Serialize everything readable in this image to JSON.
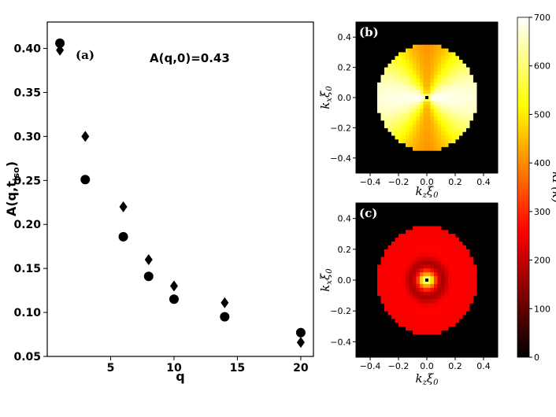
{
  "chart_data": [
    {
      "type": "scatter",
      "panel_label": "(a)",
      "annotation": "A(q,0)=0.43",
      "xlabel": "q",
      "ylabel_main": "A(q,t",
      "ylabel_sub": "iso",
      "ylabel_close": ")",
      "xlim": [
        0,
        21
      ],
      "ylim": [
        0.05,
        0.43
      ],
      "xticks": [
        "5",
        "10",
        "15",
        "20"
      ],
      "xtick_values": [
        5,
        10,
        15,
        20
      ],
      "yticks": [
        "0.05",
        "0.10",
        "0.15",
        "0.20",
        "0.25",
        "0.30",
        "0.35",
        "0.40"
      ],
      "ytick_values": [
        0.05,
        0.1,
        0.15,
        0.2,
        0.25,
        0.3,
        0.35,
        0.4
      ],
      "reference_line": {
        "y": 0.43,
        "style": "dashed"
      },
      "series": [
        {
          "marker": "circle",
          "x": [
            1,
            3,
            6,
            8,
            10,
            14,
            20
          ],
          "y": [
            0.406,
            0.251,
            0.186,
            0.141,
            0.115,
            0.095,
            0.077
          ]
        },
        {
          "marker": "diamond",
          "x": [
            1,
            3,
            6,
            8,
            10,
            14,
            20
          ],
          "y": [
            0.398,
            0.3,
            0.22,
            0.16,
            0.13,
            0.111,
            0.066
          ]
        }
      ]
    },
    {
      "type": "heatmap",
      "panel_label": "(b)",
      "xlabel_main": "k",
      "xlabel_sub": "z",
      "xlabel_tail": "ξ",
      "xlabel_tail_sub": "0",
      "ylabel_main": "k",
      "ylabel_sub": "x",
      "ylabel_tail": "ξ",
      "ylabel_tail_sub": "0",
      "xlim": [
        -0.5,
        0.5
      ],
      "ylim": [
        -0.5,
        0.5
      ],
      "xticks": [
        "−0.4",
        "−0.2",
        "0.0",
        "0.2",
        "0.4"
      ],
      "yticks": [
        "0.4",
        "0.2",
        "0.0",
        "−0.2",
        "−0.4"
      ],
      "tick_values": [
        -0.4,
        -0.2,
        0.0,
        0.2,
        0.4
      ],
      "support_radius": 0.35,
      "pattern": "anisotropic: high values along kz axis, lower along kx axis"
    },
    {
      "type": "heatmap",
      "panel_label": "(c)",
      "xlabel_main": "k",
      "xlabel_sub": "z",
      "xlabel_tail": "ξ",
      "xlabel_tail_sub": "0",
      "ylabel_main": "k",
      "ylabel_sub": "x",
      "ylabel_tail": "ξ",
      "ylabel_tail_sub": "0",
      "xlim": [
        -0.5,
        0.5
      ],
      "ylim": [
        -0.5,
        0.5
      ],
      "xticks": [
        "−0.4",
        "−0.2",
        "0.0",
        "0.2",
        "0.4"
      ],
      "yticks": [
        "0.4",
        "0.2",
        "0.0",
        "−0.2",
        "−0.4"
      ],
      "tick_values": [
        -0.4,
        -0.2,
        0.0,
        0.2,
        0.4
      ],
      "support_radius": 0.35,
      "pattern": "nearly isotropic: bright core at center, darker ring, red outer disk"
    }
  ],
  "colorbar": {
    "label": "kP(k)",
    "ticks": [
      "0",
      "100",
      "200",
      "300",
      "400",
      "500",
      "600",
      "700"
    ],
    "tick_values": [
      0,
      100,
      200,
      300,
      400,
      500,
      600,
      700
    ],
    "range": [
      0,
      700
    ],
    "colormap": "hot"
  },
  "colors": {
    "marker": "#000000",
    "background": "#ffffff"
  }
}
